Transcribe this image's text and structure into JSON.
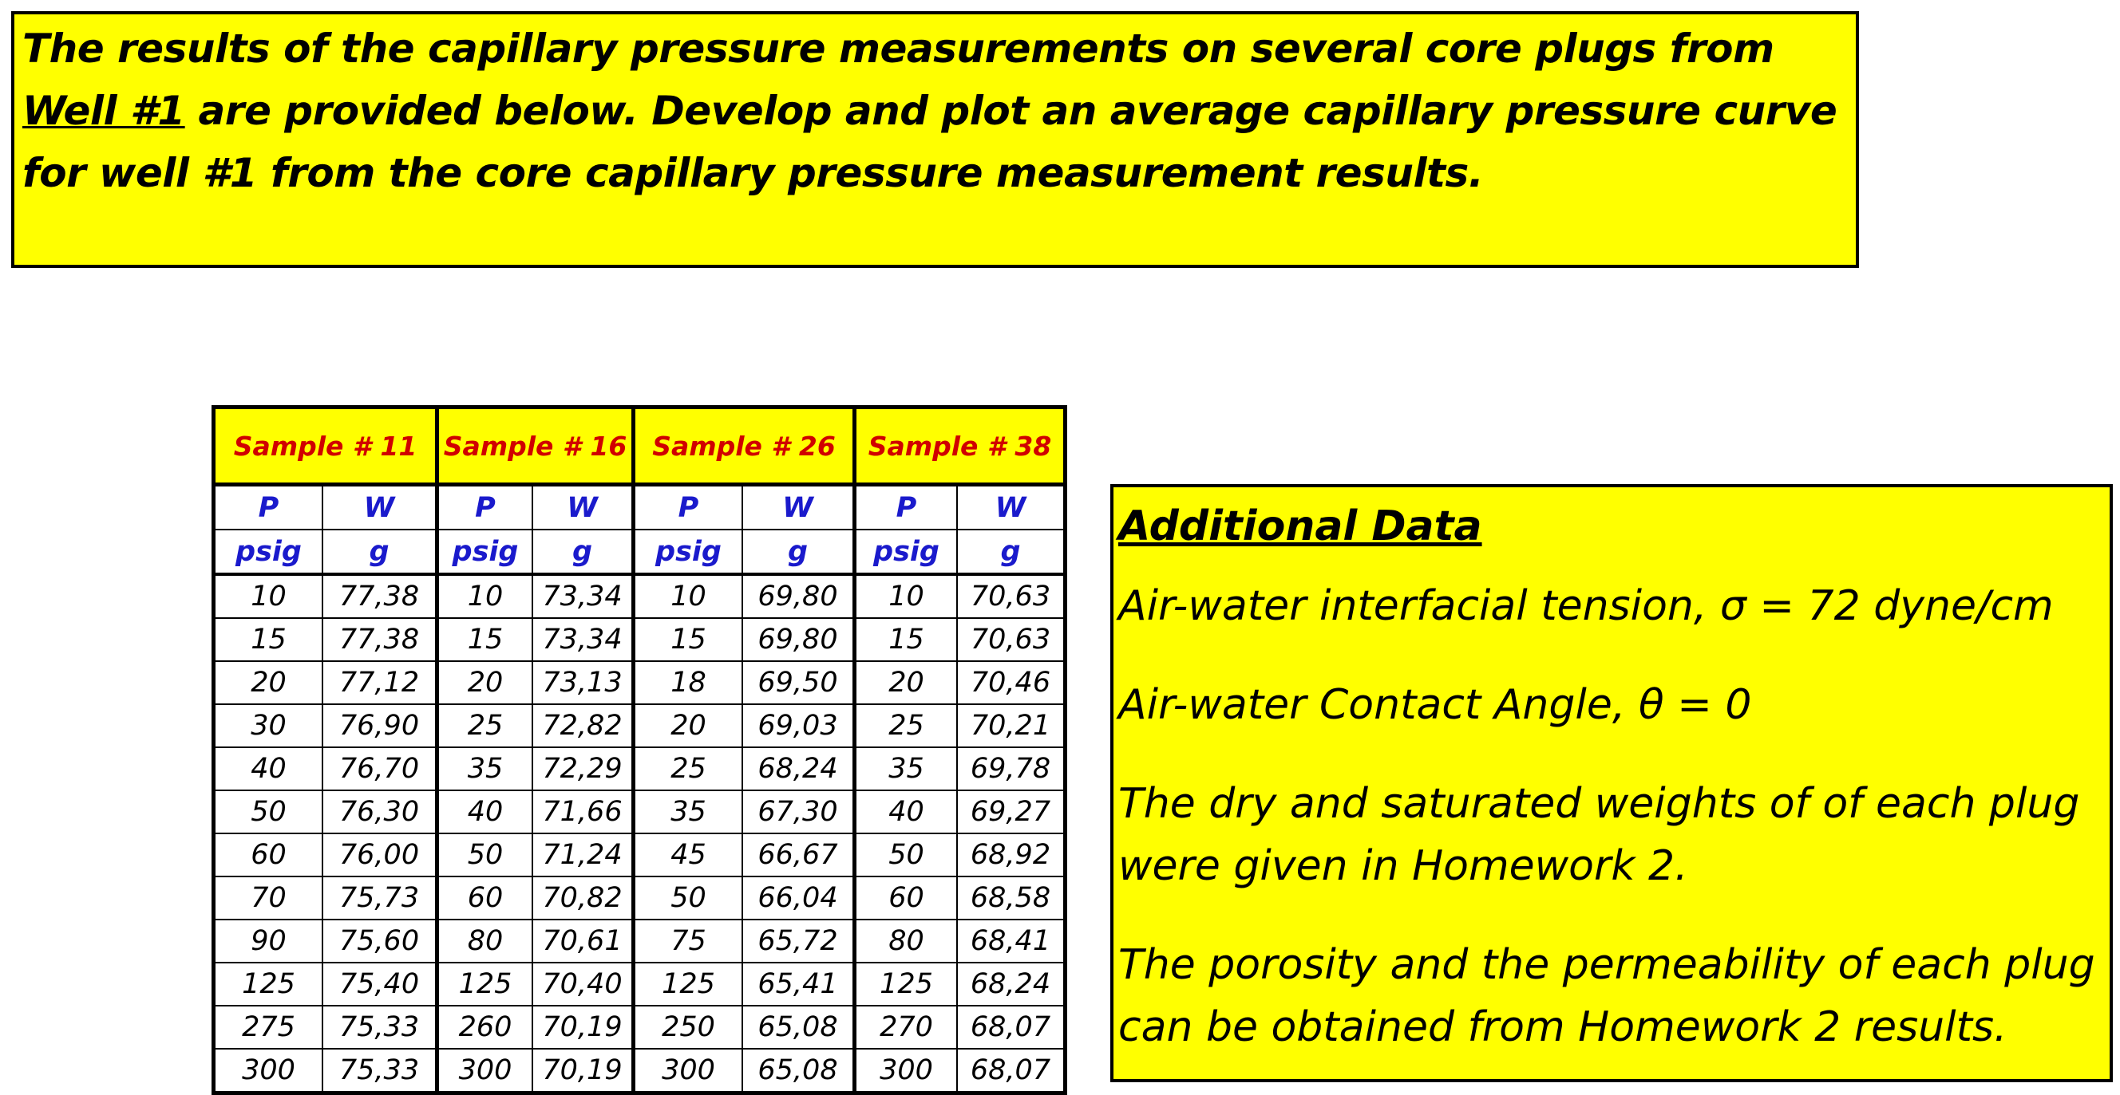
{
  "problem": {
    "text_before": "The results of the capillary pressure measurements on several core plugs from ",
    "link": "Well #1",
    "text_after": " are provided below.  Develop and plot an average capillary pressure curve for well #1 from the core capillary pressure measurement results."
  },
  "table": {
    "samples": [
      "Sample # 11",
      "Sample # 16",
      "Sample # 26",
      "Sample # 38"
    ],
    "col_names": [
      "P",
      "W",
      "P",
      "W",
      "P",
      "W",
      "P",
      "W"
    ],
    "col_units": [
      "psig",
      "g",
      "psig",
      "g",
      "psig",
      "g",
      "psig",
      "g"
    ],
    "rows": [
      [
        "10",
        "77,38",
        "10",
        "73,34",
        "10",
        "69,80",
        "10",
        "70,63"
      ],
      [
        "15",
        "77,38",
        "15",
        "73,34",
        "15",
        "69,80",
        "15",
        "70,63"
      ],
      [
        "20",
        "77,12",
        "20",
        "73,13",
        "18",
        "69,50",
        "20",
        "70,46"
      ],
      [
        "30",
        "76,90",
        "25",
        "72,82",
        "20",
        "69,03",
        "25",
        "70,21"
      ],
      [
        "40",
        "76,70",
        "35",
        "72,29",
        "25",
        "68,24",
        "35",
        "69,78"
      ],
      [
        "50",
        "76,30",
        "40",
        "71,66",
        "35",
        "67,30",
        "40",
        "69,27"
      ],
      [
        "60",
        "76,00",
        "50",
        "71,24",
        "45",
        "66,67",
        "50",
        "68,92"
      ],
      [
        "70",
        "75,73",
        "60",
        "70,82",
        "50",
        "66,04",
        "60",
        "68,58"
      ],
      [
        "90",
        "75,60",
        "80",
        "70,61",
        "75",
        "65,72",
        "80",
        "68,41"
      ],
      [
        "125",
        "75,40",
        "125",
        "70,40",
        "125",
        "65,41",
        "125",
        "68,24"
      ],
      [
        "275",
        "75,33",
        "260",
        "70,19",
        "250",
        "65,08",
        "270",
        "68,07"
      ],
      [
        "300",
        "75,33",
        "300",
        "70,19",
        "300",
        "65,08",
        "300",
        "68,07"
      ]
    ]
  },
  "additional": {
    "title": "Additional Data",
    "items": [
      "Air-water interfacial tension, σ = 72 dyne/cm",
      "Air-water Contact Angle, θ = 0",
      "The dry and saturated weights of of each plug were given in Homework 2.",
      "The porosity and the permeability of each plug can be obtained from Homework 2 results."
    ]
  }
}
